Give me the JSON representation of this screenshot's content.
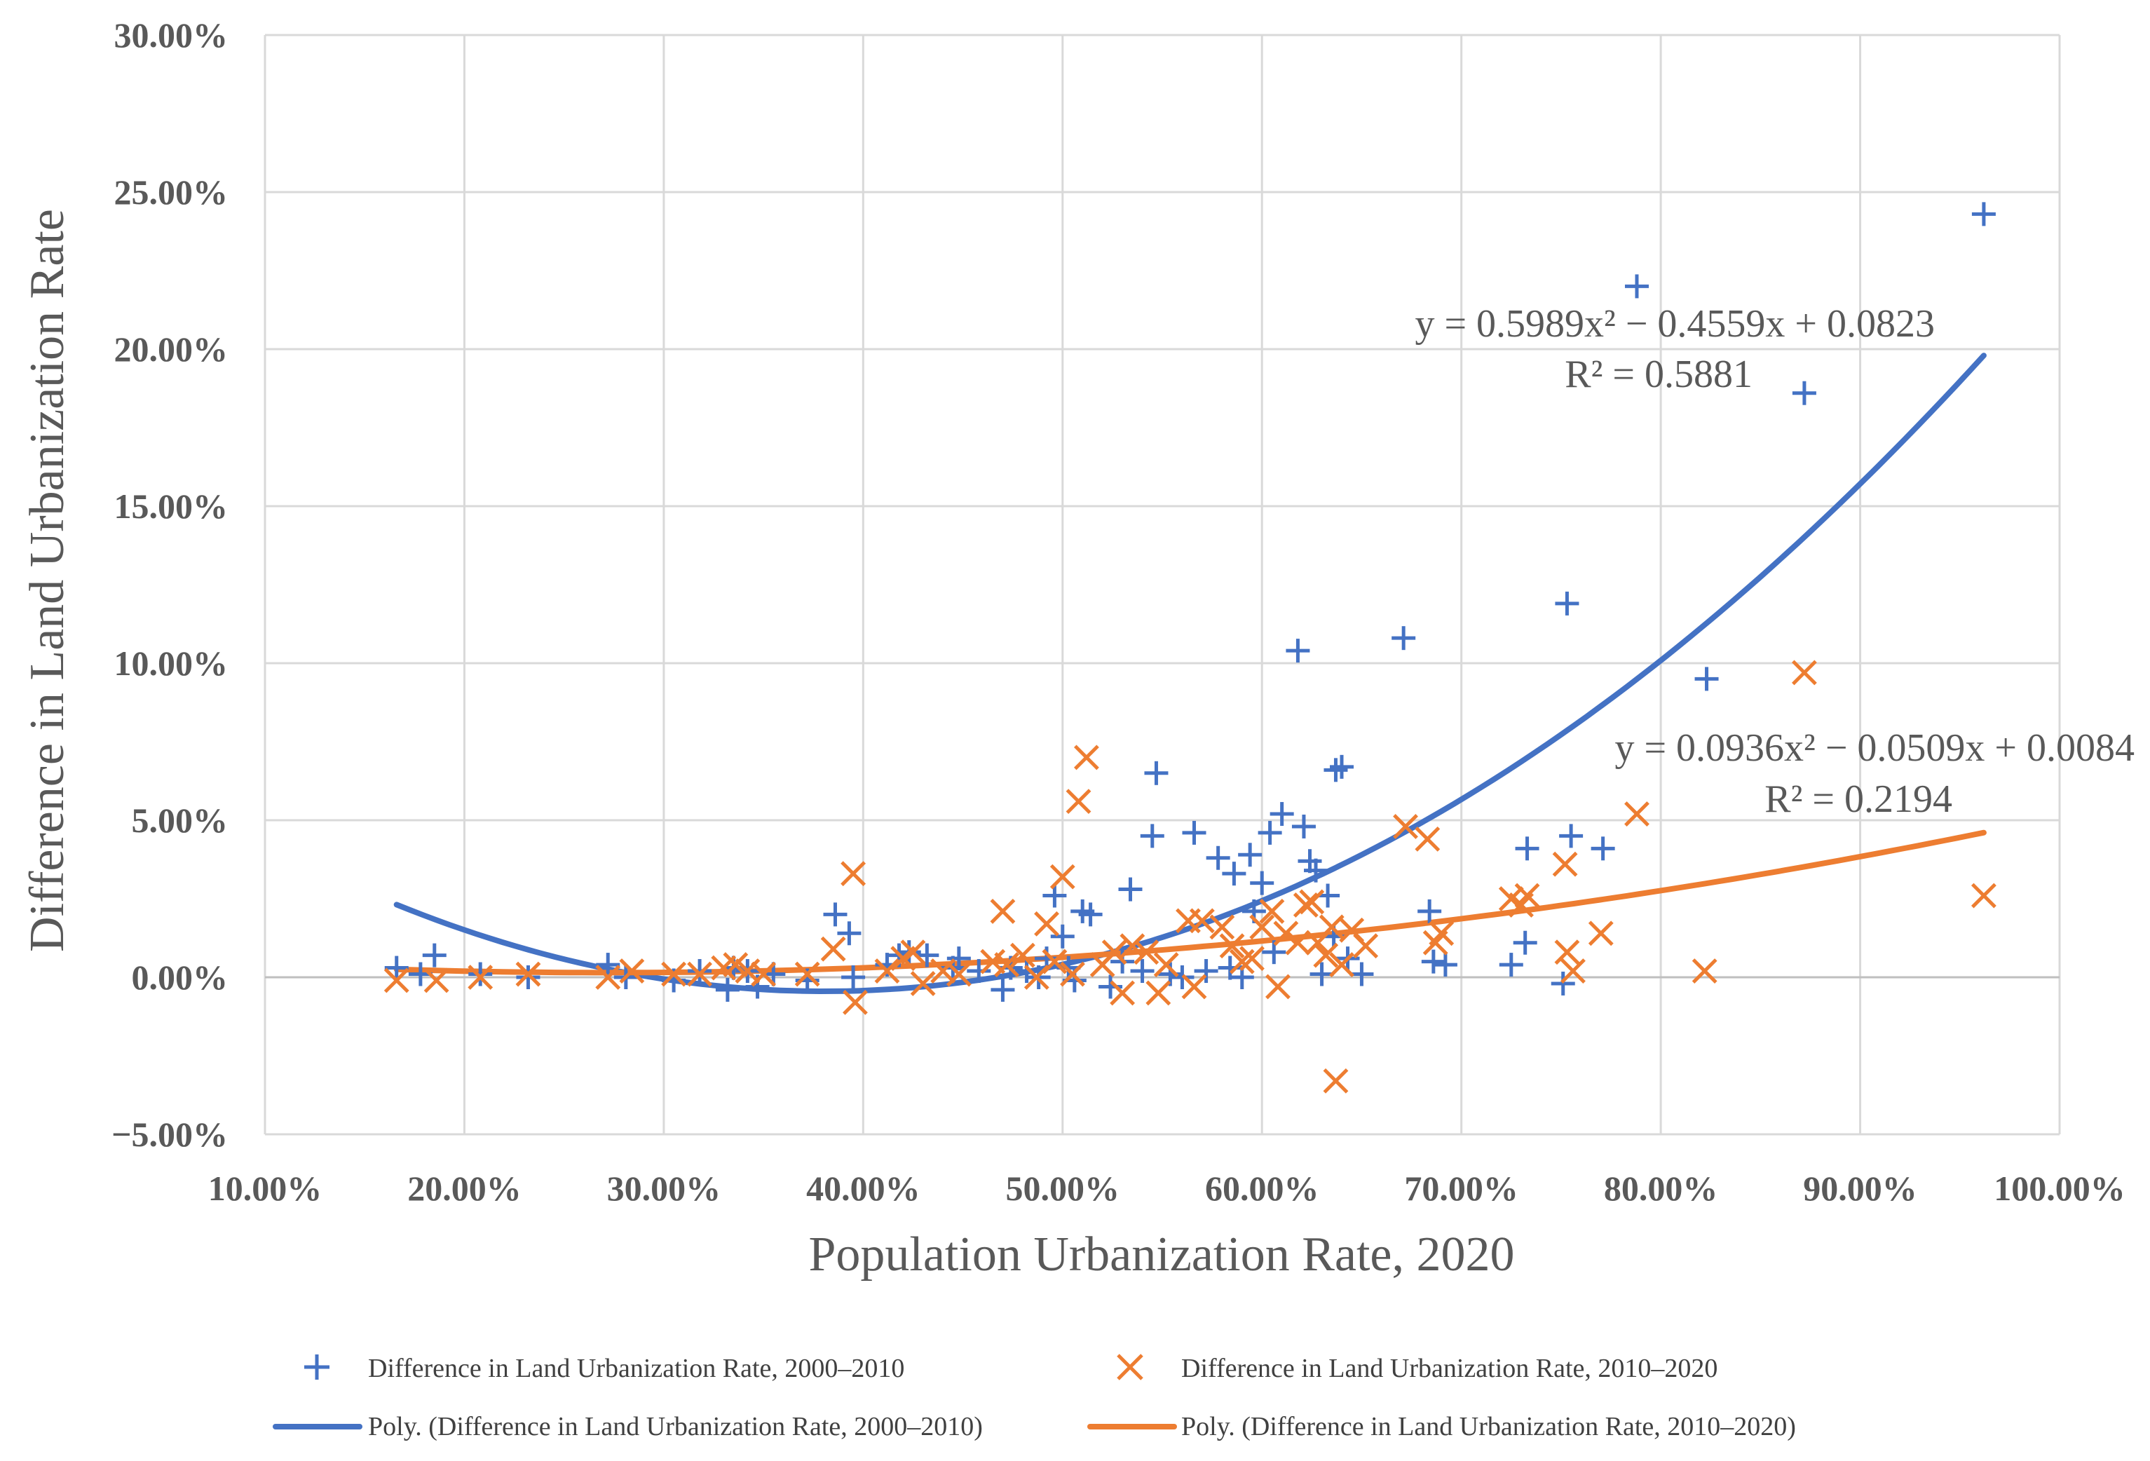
{
  "chart_data": {
    "type": "scatter",
    "title": "",
    "xlabel": "Population Urbanization Rate, 2020",
    "ylabel": "Difference in Land Urbanization Rate",
    "xlim": [
      0.1,
      1.0
    ],
    "ylim": [
      -0.05,
      0.3
    ],
    "xticks": [
      0.1,
      0.2,
      0.3,
      0.4,
      0.5,
      0.6,
      0.7,
      0.8,
      0.9,
      1.0
    ],
    "yticks": [
      -0.05,
      0.0,
      0.05,
      0.1,
      0.15,
      0.2,
      0.25,
      0.3
    ],
    "xtick_labels": [
      "10.00%",
      "20.00%",
      "30.00%",
      "40.00%",
      "50.00%",
      "60.00%",
      "70.00%",
      "80.00%",
      "90.00%",
      "100.00%"
    ],
    "ytick_labels": [
      "−5.00%",
      "0.00%",
      "5.00%",
      "10.00%",
      "15.00%",
      "20.00%",
      "25.00%",
      "30.00%"
    ],
    "grid": true,
    "legend_position": "bottom",
    "series": [
      {
        "name": "Difference in Land Urbanization Rate, 2000–2010",
        "marker": "plus",
        "color": "#4472C4",
        "points": [
          [
            0.166,
            0.003
          ],
          [
            0.178,
            0.001
          ],
          [
            0.185,
            0.007
          ],
          [
            0.208,
            0.001
          ],
          [
            0.232,
            0.0
          ],
          [
            0.272,
            0.004
          ],
          [
            0.281,
            0.0
          ],
          [
            0.305,
            -0.001
          ],
          [
            0.318,
            0.002
          ],
          [
            0.332,
            -0.004
          ],
          [
            0.335,
            0.003
          ],
          [
            0.342,
            0.002
          ],
          [
            0.347,
            -0.003
          ],
          [
            0.355,
            0.001
          ],
          [
            0.372,
            -0.001
          ],
          [
            0.386,
            0.02
          ],
          [
            0.393,
            0.014
          ],
          [
            0.395,
            0.0
          ],
          [
            0.412,
            0.004
          ],
          [
            0.418,
            0.007
          ],
          [
            0.423,
            0.008
          ],
          [
            0.432,
            0.007
          ],
          [
            0.445,
            0.003
          ],
          [
            0.448,
            0.006
          ],
          [
            0.458,
            0.002
          ],
          [
            0.47,
            -0.004
          ],
          [
            0.474,
            0.003
          ],
          [
            0.482,
            0.002
          ],
          [
            0.488,
            0.0
          ],
          [
            0.492,
            0.006
          ],
          [
            0.496,
            0.026
          ],
          [
            0.5,
            0.013
          ],
          [
            0.503,
            0.003
          ],
          [
            0.506,
            -0.001
          ],
          [
            0.51,
            0.021
          ],
          [
            0.514,
            0.02
          ],
          [
            0.524,
            -0.003
          ],
          [
            0.53,
            0.005
          ],
          [
            0.534,
            0.028
          ],
          [
            0.54,
            0.002
          ],
          [
            0.545,
            0.045
          ],
          [
            0.547,
            0.065
          ],
          [
            0.554,
            0.001
          ],
          [
            0.56,
            0.0
          ],
          [
            0.566,
            0.046
          ],
          [
            0.572,
            0.002
          ],
          [
            0.578,
            0.038
          ],
          [
            0.584,
            0.003
          ],
          [
            0.586,
            0.033
          ],
          [
            0.59,
            0.0
          ],
          [
            0.594,
            0.039
          ],
          [
            0.596,
            0.021
          ],
          [
            0.6,
            0.03
          ],
          [
            0.604,
            0.046
          ],
          [
            0.606,
            0.008
          ],
          [
            0.61,
            0.052
          ],
          [
            0.618,
            0.104
          ],
          [
            0.621,
            0.048
          ],
          [
            0.624,
            0.037
          ],
          [
            0.627,
            0.034
          ],
          [
            0.63,
            0.001
          ],
          [
            0.633,
            0.026
          ],
          [
            0.636,
            0.013
          ],
          [
            0.637,
            0.066
          ],
          [
            0.64,
            0.067
          ],
          [
            0.643,
            0.006
          ],
          [
            0.65,
            0.001
          ],
          [
            0.671,
            0.108
          ],
          [
            0.684,
            0.021
          ],
          [
            0.686,
            0.005
          ],
          [
            0.692,
            0.004
          ],
          [
            0.725,
            0.004
          ],
          [
            0.732,
            0.011
          ],
          [
            0.733,
            0.041
          ],
          [
            0.751,
            -0.002
          ],
          [
            0.753,
            0.119
          ],
          [
            0.755,
            0.045
          ],
          [
            0.771,
            0.041
          ],
          [
            0.788,
            0.22
          ],
          [
            0.823,
            0.095
          ],
          [
            0.872,
            0.186
          ],
          [
            0.962,
            0.243
          ]
        ]
      },
      {
        "name": "Difference in Land Urbanization Rate, 2010–2020",
        "marker": "x",
        "color": "#ED7D31",
        "points": [
          [
            0.166,
            -0.001
          ],
          [
            0.186,
            -0.001
          ],
          [
            0.208,
            0.0
          ],
          [
            0.232,
            0.001
          ],
          [
            0.272,
            0.0
          ],
          [
            0.284,
            0.002
          ],
          [
            0.305,
            0.001
          ],
          [
            0.318,
            0.001
          ],
          [
            0.33,
            0.003
          ],
          [
            0.336,
            0.004
          ],
          [
            0.342,
            0.002
          ],
          [
            0.35,
            0.001
          ],
          [
            0.372,
            0.001
          ],
          [
            0.385,
            0.009
          ],
          [
            0.395,
            0.033
          ],
          [
            0.396,
            -0.008
          ],
          [
            0.412,
            0.002
          ],
          [
            0.42,
            0.006
          ],
          [
            0.425,
            0.008
          ],
          [
            0.43,
            -0.002
          ],
          [
            0.44,
            0.002
          ],
          [
            0.448,
            0.001
          ],
          [
            0.465,
            0.005
          ],
          [
            0.47,
            0.021
          ],
          [
            0.472,
            0.004
          ],
          [
            0.48,
            0.007
          ],
          [
            0.487,
            0.0
          ],
          [
            0.492,
            0.017
          ],
          [
            0.496,
            0.005
          ],
          [
            0.5,
            0.032
          ],
          [
            0.505,
            0.001
          ],
          [
            0.508,
            0.056
          ],
          [
            0.512,
            0.07
          ],
          [
            0.52,
            0.004
          ],
          [
            0.526,
            0.008
          ],
          [
            0.53,
            -0.005
          ],
          [
            0.535,
            0.01
          ],
          [
            0.542,
            0.008
          ],
          [
            0.548,
            -0.005
          ],
          [
            0.552,
            0.004
          ],
          [
            0.563,
            0.018
          ],
          [
            0.566,
            -0.003
          ],
          [
            0.57,
            0.018
          ],
          [
            0.58,
            0.016
          ],
          [
            0.585,
            0.01
          ],
          [
            0.59,
            0.005
          ],
          [
            0.595,
            0.006
          ],
          [
            0.6,
            0.016
          ],
          [
            0.605,
            0.021
          ],
          [
            0.608,
            -0.003
          ],
          [
            0.612,
            0.014
          ],
          [
            0.618,
            0.011
          ],
          [
            0.622,
            0.023
          ],
          [
            0.625,
            0.024
          ],
          [
            0.628,
            0.011
          ],
          [
            0.632,
            0.007
          ],
          [
            0.635,
            0.016
          ],
          [
            0.637,
            -0.033
          ],
          [
            0.64,
            0.004
          ],
          [
            0.645,
            0.015
          ],
          [
            0.652,
            0.01
          ],
          [
            0.672,
            0.048
          ],
          [
            0.683,
            0.044
          ],
          [
            0.687,
            0.011
          ],
          [
            0.69,
            0.014
          ],
          [
            0.725,
            0.025
          ],
          [
            0.73,
            0.023
          ],
          [
            0.733,
            0.026
          ],
          [
            0.752,
            0.036
          ],
          [
            0.753,
            0.008
          ],
          [
            0.756,
            0.002
          ],
          [
            0.77,
            0.014
          ],
          [
            0.788,
            0.052
          ],
          [
            0.822,
            0.002
          ],
          [
            0.872,
            0.097
          ],
          [
            0.962,
            0.026
          ]
        ]
      }
    ],
    "trendlines": [
      {
        "name": "Poly. (Difference in Land Urbanization Rate, 2000–2010)",
        "color": "#4472C4",
        "coefficients": [
          0.5989,
          -0.4559,
          0.0823
        ],
        "x_range": [
          0.166,
          0.962
        ],
        "equation": "y = 0.5989x² − 0.4559x + 0.0823",
        "r2": "R² = 0.5881"
      },
      {
        "name": "Poly. (Difference in Land Urbanization Rate, 2010–2020)",
        "color": "#ED7D31",
        "coefficients": [
          0.0936,
          -0.0509,
          0.0084
        ],
        "x_range": [
          0.166,
          0.962
        ],
        "equation": "y = 0.0936x² − 0.0509x + 0.0084",
        "r2": "R² = 0.2194"
      }
    ]
  }
}
